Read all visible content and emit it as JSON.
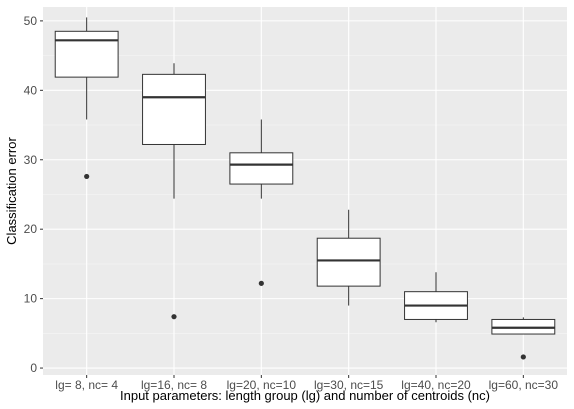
{
  "chart_data": {
    "type": "boxplot",
    "xlabel": "Input parameters: length group (lg) and number of centroids (nc)",
    "ylabel": "Classification error",
    "ylim": [
      -1,
      52
    ],
    "yticks": [
      0,
      10,
      20,
      30,
      40,
      50
    ],
    "grid": true,
    "theme": "ggplot2-grey",
    "colors": {
      "panel": "#ebebeb",
      "grid_major": "#ffffff",
      "grid_minor": "#f5f5f5",
      "box_fill": "#ffffff",
      "box_line": "#333333",
      "outlier": "#333333"
    },
    "categories": [
      "lg= 8, nc= 4",
      "lg=16, nc= 8",
      "lg=20, nc=10",
      "lg=30, nc=15",
      "lg=40, nc=20",
      "lg=60, nc=30"
    ],
    "boxes": [
      {
        "whisker_low": 35.8,
        "q1": 41.9,
        "median": 47.2,
        "q3": 48.5,
        "whisker_high": 50.5,
        "outliers": [
          27.6
        ]
      },
      {
        "whisker_low": 24.4,
        "q1": 32.2,
        "median": 39.0,
        "q3": 42.3,
        "whisker_high": 43.9,
        "outliers": [
          7.4
        ]
      },
      {
        "whisker_low": 24.4,
        "q1": 26.5,
        "median": 29.3,
        "q3": 31.0,
        "whisker_high": 35.8,
        "outliers": [
          12.2
        ]
      },
      {
        "whisker_low": 9.0,
        "q1": 11.8,
        "median": 15.5,
        "q3": 18.7,
        "whisker_high": 22.8,
        "outliers": []
      },
      {
        "whisker_low": 6.6,
        "q1": 7.0,
        "median": 9.0,
        "q3": 11.0,
        "whisker_high": 13.8,
        "outliers": []
      },
      {
        "whisker_low": 4.9,
        "q1": 4.9,
        "median": 5.8,
        "q3": 7.0,
        "whisker_high": 7.3,
        "outliers": [
          1.6
        ]
      }
    ]
  }
}
